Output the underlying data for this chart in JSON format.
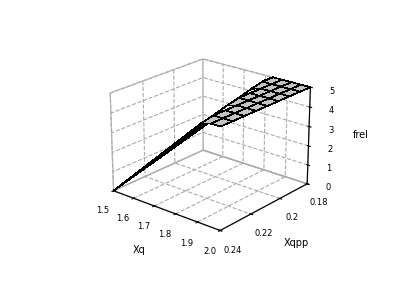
{
  "xq_min": 1.5,
  "xq_max": 2.0,
  "xqpp_min": 0.18,
  "xqpp_max": 0.24,
  "xq_ticks": [
    1.5,
    1.6,
    1.7,
    1.8,
    1.9,
    2.0
  ],
  "xqpp_ticks": [
    0.18,
    0.2,
    0.22,
    0.24
  ],
  "frel_ticks": [
    0,
    1,
    2,
    3,
    4,
    5
  ],
  "xlabel": "Xq",
  "ylabel": "Xqpp",
  "zlabel": "frel",
  "surface_color": "white",
  "edge_color": "black",
  "background_color": "white",
  "figsize": [
    4.06,
    2.82
  ],
  "dpi": 100,
  "elev": 22,
  "azim": -50,
  "alpha": 11.67,
  "beta": -21.67,
  "gamma": -12.3,
  "n_xq": 13,
  "n_xqpp": 9
}
